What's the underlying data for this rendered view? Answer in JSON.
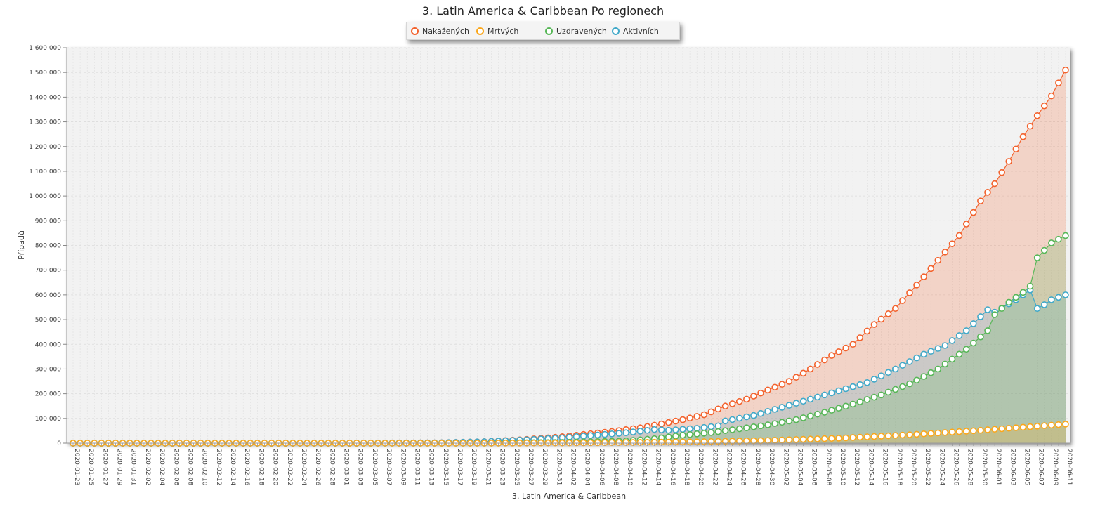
{
  "chart_data": {
    "type": "area",
    "title": "3. Latin America & Caribbean Po regionech",
    "xlabel": "3. Latin America & Caribbean",
    "ylabel": "Případů",
    "ylim": [
      0,
      1600000
    ],
    "yticks": [
      "0",
      "100 000",
      "200 000",
      "300 000",
      "400 000",
      "500 000",
      "600 000",
      "700 000",
      "800 000",
      "900 000",
      "1 000 000",
      "1 100 000",
      "1 200 000",
      "1 300 000",
      "1 400 000",
      "1 500 000",
      "1 600 000"
    ],
    "x_start": "2020-01-23",
    "x_end": "2020-06-11",
    "x_tick_labels": [
      "2020-01-23",
      "2020-01-25",
      "2020-01-27",
      "2020-01-29",
      "2020-01-31",
      "2020-02-02",
      "2020-02-04",
      "2020-02-06",
      "2020-02-08",
      "2020-02-10",
      "2020-02-12",
      "2020-02-14",
      "2020-02-16",
      "2020-02-18",
      "2020-02-20",
      "2020-02-22",
      "2020-02-24",
      "2020-02-26",
      "2020-02-28",
      "2020-03-01",
      "2020-03-03",
      "2020-03-05",
      "2020-03-07",
      "2020-03-09",
      "2020-03-11",
      "2020-03-13",
      "2020-03-15",
      "2020-03-17",
      "2020-03-19",
      "2020-03-21",
      "2020-03-23",
      "2020-03-25",
      "2020-03-27",
      "2020-03-29",
      "2020-03-31",
      "2020-04-02",
      "2020-04-04",
      "2020-04-06",
      "2020-04-08",
      "2020-04-10",
      "2020-04-12",
      "2020-04-14",
      "2020-04-16",
      "2020-04-18",
      "2020-04-20",
      "2020-04-22",
      "2020-04-24",
      "2020-04-26",
      "2020-04-28",
      "2020-04-30",
      "2020-05-02",
      "2020-05-04",
      "2020-05-06",
      "2020-05-08",
      "2020-05-10",
      "2020-05-12",
      "2020-05-14",
      "2020-05-16",
      "2020-05-18",
      "2020-05-20",
      "2020-05-22",
      "2020-05-24",
      "2020-05-26",
      "2020-05-28",
      "2020-05-30",
      "2020-06-01",
      "2020-06-03",
      "2020-06-05",
      "2020-06-07",
      "2020-06-09",
      "2020-06-11"
    ],
    "grid": true,
    "legend_position": "top-center",
    "series": [
      {
        "name": "Nakažených",
        "color": "#f3622d",
        "fill": "rgba(243,98,45,0.22)",
        "points": [
          [
            "2020-03-01",
            0
          ],
          [
            "2020-03-15",
            1500
          ],
          [
            "2020-03-21",
            6000
          ],
          [
            "2020-03-27",
            15000
          ],
          [
            "2020-04-01",
            26000
          ],
          [
            "2020-04-04",
            35000
          ],
          [
            "2020-04-08",
            47000
          ],
          [
            "2020-04-12",
            62000
          ],
          [
            "2020-04-15",
            78000
          ],
          [
            "2020-04-18",
            95000
          ],
          [
            "2020-04-21",
            115000
          ],
          [
            "2020-04-24",
            150000
          ],
          [
            "2020-04-27",
            178000
          ],
          [
            "2020-04-30",
            215000
          ],
          [
            "2020-05-03",
            250000
          ],
          [
            "2020-05-06",
            300000
          ],
          [
            "2020-05-09",
            355000
          ],
          [
            "2020-05-12",
            400000
          ],
          [
            "2020-05-15",
            480000
          ],
          [
            "2020-05-18",
            545000
          ],
          [
            "2020-05-21",
            640000
          ],
          [
            "2020-05-24",
            740000
          ],
          [
            "2020-05-27",
            840000
          ],
          [
            "2020-05-30",
            980000
          ],
          [
            "2020-06-01",
            1050000
          ],
          [
            "2020-06-03",
            1140000
          ],
          [
            "2020-06-05",
            1240000
          ],
          [
            "2020-06-07",
            1325000
          ],
          [
            "2020-06-09",
            1405000
          ],
          [
            "2020-06-11",
            1510000
          ]
        ]
      },
      {
        "name": "Mrtvých",
        "color": "#fba71b",
        "fill": "rgba(251,167,27,0.22)",
        "points": [
          [
            "2020-03-19",
            0
          ],
          [
            "2020-04-01",
            1000
          ],
          [
            "2020-04-10",
            2800
          ],
          [
            "2020-04-20",
            5200
          ],
          [
            "2020-04-30",
            11000
          ],
          [
            "2020-05-10",
            20000
          ],
          [
            "2020-05-20",
            34000
          ],
          [
            "2020-05-30",
            52000
          ],
          [
            "2020-06-11",
            77000
          ]
        ]
      },
      {
        "name": "Uzdravených",
        "color": "#57b757",
        "fill": "rgba(87,183,87,0.22)",
        "points": [
          [
            "2020-03-21",
            0
          ],
          [
            "2020-04-01",
            3000
          ],
          [
            "2020-04-10",
            9000
          ],
          [
            "2020-04-14",
            18000
          ],
          [
            "2020-04-18",
            32000
          ],
          [
            "2020-04-22",
            43000
          ],
          [
            "2020-04-26",
            58000
          ],
          [
            "2020-04-30",
            74000
          ],
          [
            "2020-05-04",
            95000
          ],
          [
            "2020-05-08",
            125000
          ],
          [
            "2020-05-12",
            158000
          ],
          [
            "2020-05-16",
            195000
          ],
          [
            "2020-05-20",
            240000
          ],
          [
            "2020-05-24",
            300000
          ],
          [
            "2020-05-28",
            380000
          ],
          [
            "2020-05-31",
            455000
          ],
          [
            "2020-06-01",
            520000
          ],
          [
            "2020-06-03",
            570000
          ],
          [
            "2020-06-05",
            610000
          ],
          [
            "2020-06-06",
            635000
          ],
          [
            "2020-06-07",
            750000
          ],
          [
            "2020-06-08",
            780000
          ],
          [
            "2020-06-09",
            810000
          ],
          [
            "2020-06-11",
            840000
          ]
        ]
      },
      {
        "name": "Aktivních",
        "color": "#41a9c9",
        "fill": "rgba(65,169,201,0.22)",
        "points": [
          [
            "2020-03-01",
            0
          ],
          [
            "2020-03-15",
            1500
          ],
          [
            "2020-03-21",
            5800
          ],
          [
            "2020-03-27",
            13500
          ],
          [
            "2020-04-01",
            22000
          ],
          [
            "2020-04-06",
            33000
          ],
          [
            "2020-04-10",
            42000
          ],
          [
            "2020-04-14",
            55000
          ],
          [
            "2020-04-16",
            52000
          ],
          [
            "2020-04-20",
            60000
          ],
          [
            "2020-04-23",
            70000
          ],
          [
            "2020-04-24",
            90000
          ],
          [
            "2020-04-28",
            112000
          ],
          [
            "2020-05-02",
            145000
          ],
          [
            "2020-05-06",
            178000
          ],
          [
            "2020-05-10",
            212000
          ],
          [
            "2020-05-14",
            245000
          ],
          [
            "2020-05-18",
            300000
          ],
          [
            "2020-05-22",
            360000
          ],
          [
            "2020-05-25",
            395000
          ],
          [
            "2020-05-28",
            455000
          ],
          [
            "2020-05-31",
            540000
          ],
          [
            "2020-06-01",
            530000
          ],
          [
            "2020-06-04",
            580000
          ],
          [
            "2020-06-05",
            600000
          ],
          [
            "2020-06-06",
            620000
          ],
          [
            "2020-06-07",
            545000
          ],
          [
            "2020-06-08",
            560000
          ],
          [
            "2020-06-09",
            580000
          ],
          [
            "2020-06-11",
            600000
          ]
        ]
      }
    ]
  }
}
